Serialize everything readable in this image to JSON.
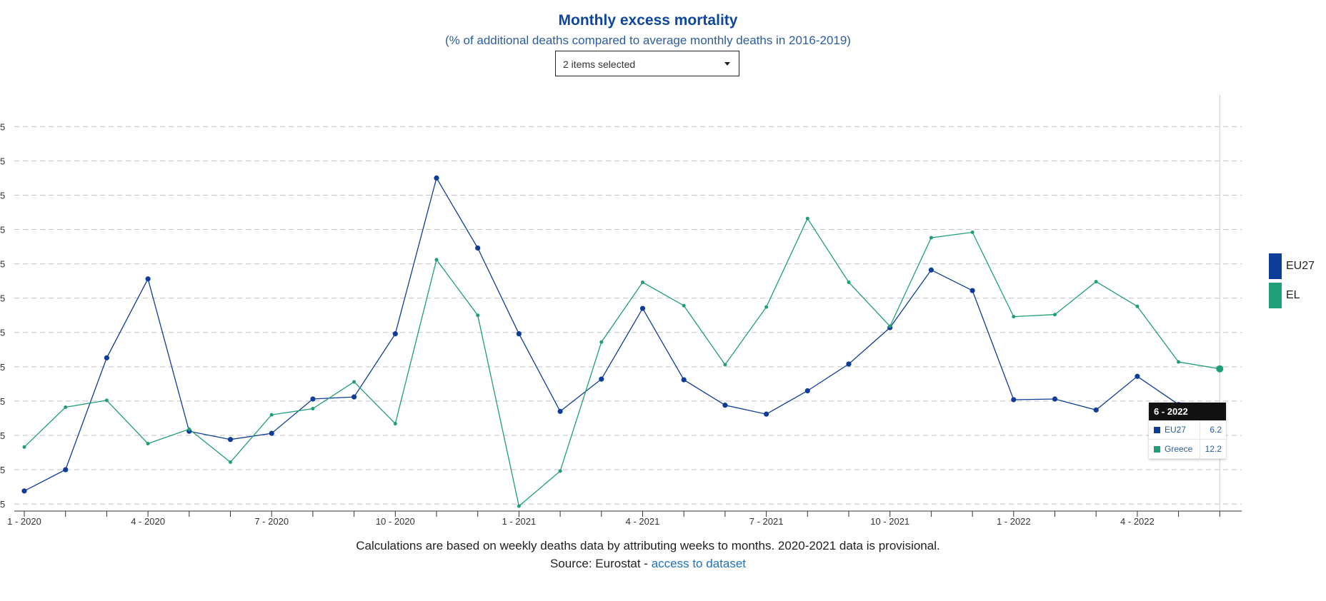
{
  "chart_data": {
    "type": "line",
    "title": "Monthly excess mortality",
    "subtitle": "(% of additional deaths compared to average monthly deaths in 2016-2019)",
    "categories": [
      "1 - 2020",
      "2 - 2020",
      "3 - 2020",
      "4 - 2020",
      "5 - 2020",
      "6 - 2020",
      "7 - 2020",
      "8 - 2020",
      "9 - 2020",
      "10 - 2020",
      "11 - 2020",
      "12 - 2020",
      "1 - 2021",
      "2 - 2021",
      "3 - 2021",
      "4 - 2021",
      "5 - 2021",
      "6 - 2021",
      "7 - 2021",
      "8 - 2021",
      "9 - 2021",
      "10 - 2021",
      "11 - 2021",
      "12 - 2021",
      "1 - 2022",
      "2 - 2022",
      "3 - 2022",
      "4 - 2022",
      "5 - 2022",
      "6 - 2022"
    ],
    "x_tick_labels": [
      "1 - 2020",
      "4 - 2020",
      "7 - 2020",
      "10 - 2020",
      "1 - 2021",
      "4 - 2021",
      "7 - 2021",
      "10 - 2021",
      "1 - 2022",
      "4 - 2022"
    ],
    "ylim": [
      -7.5,
      50
    ],
    "y_step": 5,
    "grid": true,
    "series": [
      {
        "name": "EU27",
        "color": "#0e3d99",
        "values": [
          -5.6,
          -2.5,
          13.8,
          25.3,
          3.1,
          1.9,
          2.8,
          7.8,
          8.1,
          17.3,
          40.0,
          29.8,
          17.3,
          6.0,
          10.7,
          21.0,
          10.6,
          6.9,
          5.6,
          9.0,
          12.9,
          18.2,
          26.6,
          23.6,
          7.7,
          7.8,
          6.2,
          11.1,
          7.0,
          6.2
        ]
      },
      {
        "name": "EL",
        "color": "#1f9e78",
        "values": [
          0.8,
          6.6,
          7.6,
          1.3,
          3.4,
          -1.4,
          5.5,
          6.4,
          10.3,
          4.2,
          28.1,
          20.0,
          -7.8,
          -2.7,
          16.1,
          24.8,
          21.4,
          12.8,
          21.2,
          34.1,
          24.8,
          18.4,
          31.3,
          32.1,
          19.8,
          20.1,
          24.9,
          21.3,
          13.2,
          12.2
        ]
      }
    ],
    "highlight_index": 29
  },
  "selector": {
    "label": "2 items selected"
  },
  "legend": [
    {
      "label": "EU27",
      "color": "#0e3d99"
    },
    {
      "label": "EL",
      "color": "#1f9e78"
    }
  ],
  "tooltip": {
    "header": "6 - 2022",
    "rows": [
      {
        "name": "EU27",
        "value": "6.2",
        "color": "#0e3d99"
      },
      {
        "name": "Greece",
        "value": "12.2",
        "color": "#1f9e78"
      }
    ]
  },
  "footnote": "Calculations are based on weekly deaths data by attributing weeks to months. 2020-2021 data is provisional.",
  "source": {
    "prefix": "Source: Eurostat - ",
    "link_text": "access to dataset"
  }
}
